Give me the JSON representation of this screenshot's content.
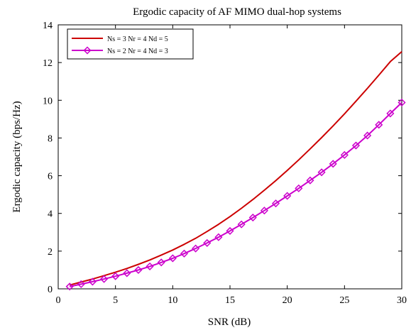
{
  "chart_data": {
    "type": "line",
    "title": "Ergodic capacity of AF MIMO dual-hop systems",
    "xlabel": "SNR (dB)",
    "ylabel": "Ergodic capacity (bps/Hz)",
    "xlim": [
      0,
      30
    ],
    "ylim": [
      0,
      14
    ],
    "xticks": [
      0,
      5,
      10,
      15,
      20,
      25,
      30
    ],
    "yticks": [
      0,
      2,
      4,
      6,
      8,
      10,
      12,
      14
    ],
    "grid": false,
    "legend_position": "top-left",
    "series": [
      {
        "name": "Ns = 3 Nr = 4 Nd = 5",
        "color": "#cc0000",
        "marker": "none",
        "x": [
          1,
          2,
          3,
          4,
          5,
          6,
          7,
          8,
          9,
          10,
          11,
          12,
          13,
          14,
          15,
          16,
          17,
          18,
          19,
          20,
          21,
          22,
          23,
          24,
          25,
          26,
          27,
          28,
          29,
          30
        ],
        "y": [
          0.2,
          0.36,
          0.52,
          0.7,
          0.88,
          1.08,
          1.3,
          1.53,
          1.79,
          2.06,
          2.36,
          2.68,
          3.04,
          3.42,
          3.83,
          4.27,
          4.74,
          5.23,
          5.74,
          6.28,
          6.84,
          7.42,
          8.02,
          8.64,
          9.28,
          9.95,
          10.63,
          11.33,
          12.05,
          12.58
        ]
      },
      {
        "name": "Ns = 2 Nr = 4 Nd = 3",
        "color": "#cc00cc",
        "marker": "diamond",
        "x": [
          1,
          2,
          3,
          4,
          5,
          6,
          7,
          8,
          9,
          10,
          11,
          12,
          13,
          14,
          15,
          16,
          17,
          18,
          19,
          20,
          21,
          22,
          23,
          24,
          25,
          26,
          27,
          28,
          29,
          30
        ],
        "y": [
          0.12,
          0.25,
          0.38,
          0.52,
          0.67,
          0.83,
          1.0,
          1.19,
          1.4,
          1.62,
          1.87,
          2.14,
          2.43,
          2.74,
          3.07,
          3.42,
          3.78,
          4.15,
          4.53,
          4.93,
          5.33,
          5.75,
          6.18,
          6.63,
          7.1,
          7.6,
          8.13,
          8.7,
          9.3,
          9.88
        ]
      }
    ]
  }
}
